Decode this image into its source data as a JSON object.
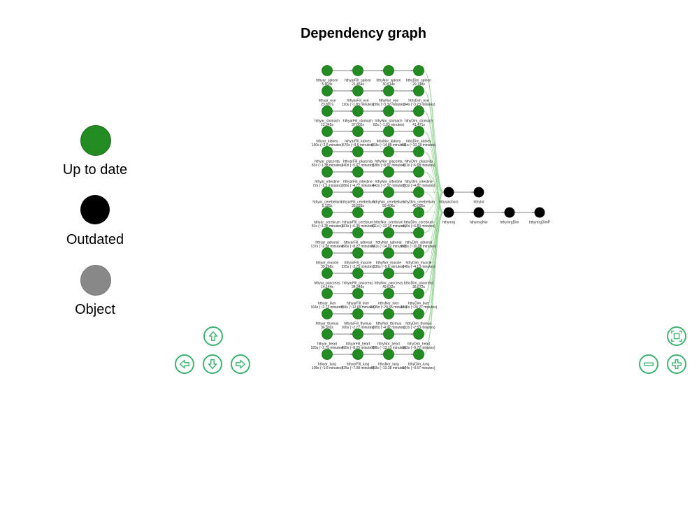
{
  "title": "Dependency graph",
  "legend": [
    {
      "label": "Up to date",
      "color": "#228b22"
    },
    {
      "label": "Outdated",
      "color": "#000000"
    },
    {
      "label": "Object",
      "color": "#888888"
    }
  ],
  "colors": {
    "up_to_date": "#228b22",
    "outdated": "#000000",
    "edge_green": "#8fcf8f",
    "edge": "#555555",
    "button": "#3cb371"
  },
  "buttons": {
    "up": "arrow-up-icon",
    "left": "arrow-left-icon",
    "down": "arrow-down-icon",
    "right": "arrow-right-icon",
    "fit": "fit-to-screen-icon",
    "zoom_out": "zoom-out-icon",
    "zoom_in": "zoom-in-icon"
  },
  "graph": {
    "rows": [
      [
        {
          "name": "hthyar_spleen",
          "time": "5.903s"
        },
        {
          "name": "hthyarFill_spleen",
          "time": "21.454s"
        },
        {
          "name": "hthyNor_spleen",
          "time": "30.514s"
        },
        {
          "name": "hthyDim_spleen",
          "time": "29.748s"
        }
      ],
      [
        {
          "name": "hthyar_eye",
          "time": "23.897s"
        },
        {
          "name": "hthyarFill_eye",
          "time": "110s (~1.83 minutes)"
        },
        {
          "name": "hthyNor_eye",
          "time": "199s (~3.32 minutes)"
        },
        {
          "name": "hthyDim_eye",
          "time": "194s (~3.23 minutes)"
        }
      ],
      [
        {
          "name": "hthyar_stomach",
          "time": "12.345s"
        },
        {
          "name": "hthyarFill_stomach",
          "time": "37.002s"
        },
        {
          "name": "hthyNor_stomach",
          "time": "62s (~1.03 minutes)"
        },
        {
          "name": "hthyDim_stomach",
          "time": "41.471s"
        }
      ],
      [
        {
          "name": "hthyar_kidney",
          "time": "150s (~2.5 minutes)"
        },
        {
          "name": "hthyarFill_kidney",
          "time": "570s (~9.5 minutes)"
        },
        {
          "name": "hthyNor_kidney",
          "time": "893s (~14.88 minutes)"
        },
        {
          "name": "hthyDim_kidney",
          "time": "611s (~10.18 minutes)"
        }
      ],
      [
        {
          "name": "hthyar_placenta",
          "time": "83s (~1.38 minutes)"
        },
        {
          "name": "hthyarFill_placenta",
          "time": "340s (~5.67 minutes)"
        },
        {
          "name": "hthyNor_placenta",
          "time": "538s (~8.97 minutes)"
        },
        {
          "name": "hthyDim_placenta",
          "time": "401s (~6.68 minutes)"
        }
      ],
      [
        {
          "name": "hthyar_intestine",
          "time": "72s (~1.2 minutes)"
        },
        {
          "name": "hthyarFill_intestine",
          "time": "286s (~4.77 minutes)"
        },
        {
          "name": "hthyNor_intestine",
          "time": "442s (~7.37 minutes)"
        },
        {
          "name": "hthyDim_intestine",
          "time": "292s (~4.87 minutes)"
        }
      ],
      [
        {
          "name": "hthyar_cerebellum",
          "time": "6.125s"
        },
        {
          "name": "hthyarFill_cerebellum",
          "time": "35.833s"
        },
        {
          "name": "hthyNor_cerebellum",
          "time": "59.406s"
        },
        {
          "name": "hthyDim_cerebellum",
          "time": "40.095s"
        }
      ],
      [
        {
          "name": "hthyar_cerebrum",
          "time": "81s (~1.35 minutes)"
        },
        {
          "name": "hthyarFill_cerebrum",
          "time": "381s (~6.35 minutes)"
        },
        {
          "name": "hthyNor_cerebrum",
          "time": "611s (~10.18 minutes)"
        },
        {
          "name": "hthyDim_cerebrum",
          "time": "410s (~6.83 minutes)"
        }
      ],
      [
        {
          "name": "hthyar_adrenal",
          "time": "137s (~2.28 minutes)"
        },
        {
          "name": "hthyarFill_adrenal",
          "time": "496s (~8.27 minutes)"
        },
        {
          "name": "hthyNor_adrenal",
          "time": "841s (~14.02 minutes)"
        },
        {
          "name": "hthyDim_adrenal",
          "time": "605s (~10.08 minutes)"
        }
      ],
      [
        {
          "name": "hthyar_muscle",
          "time": "39.266s"
        },
        {
          "name": "hthyarFill_muscle",
          "time": "225s (~3.75 minutes)"
        },
        {
          "name": "hthyNor_muscle",
          "time": "336s (~5.6 minutes)"
        },
        {
          "name": "hthyDim_muscle",
          "time": "248s (~4.13 minutes)"
        }
      ],
      [
        {
          "name": "hthyar_pancreas",
          "time": "14.144s"
        },
        {
          "name": "hthyarFill_pancreas",
          "time": "34.346s"
        },
        {
          "name": "hthyNor_pancreas",
          "time": "49.632s"
        },
        {
          "name": "hthyDim_pancreas",
          "time": "36.672s"
        }
      ],
      [
        {
          "name": "hthyar_liver",
          "time": "164s (~2.73 minutes)"
        },
        {
          "name": "hthyarFill_liver",
          "time": "759s (~12.65 minutes)"
        },
        {
          "name": "hthyNor_liver",
          "time": "1239s (~20.65 minutes)"
        },
        {
          "name": "hthyDim_liver",
          "time": "1216s (~20.27 minutes)"
        }
      ],
      [
        {
          "name": "hthyar_thymus",
          "time": "36.302s"
        },
        {
          "name": "hthyarFill_thymus",
          "time": "166s (~2.77 minutes)"
        },
        {
          "name": "hthyNor_thymus",
          "time": "295s (~4.92 minutes)"
        },
        {
          "name": "hthyDim_thymus",
          "time": "152s (~2.53 minutes)"
        }
      ],
      [
        {
          "name": "hthyar_heart",
          "time": "165s (~2.75 minutes)"
        },
        {
          "name": "hthyarFill_heart",
          "time": "495s (~8.25 minutes)"
        },
        {
          "name": "hthyNor_heart",
          "time": "788s (~13.13 minutes)"
        },
        {
          "name": "hthyDim_heart",
          "time": "583s (~9.72 minutes)"
        }
      ],
      [
        {
          "name": "hthyar_lung",
          "time": "108s (~1.8 minutes)"
        },
        {
          "name": "hthyarFill_lung",
          "time": "425s (~7.08 minutes)"
        },
        {
          "name": "hthyNor_lung",
          "time": "803s (~13.38 minutes)"
        },
        {
          "name": "hthyDim_lung",
          "time": "574s (~9.57 minutes)"
        }
      ]
    ],
    "outdated_top": [
      "hthyanchors",
      "hthyInt"
    ],
    "outdated_bottom": [
      "hthymrg",
      "hthymrgNor",
      "hthymrgDim",
      "hthymrgDimP"
    ]
  }
}
